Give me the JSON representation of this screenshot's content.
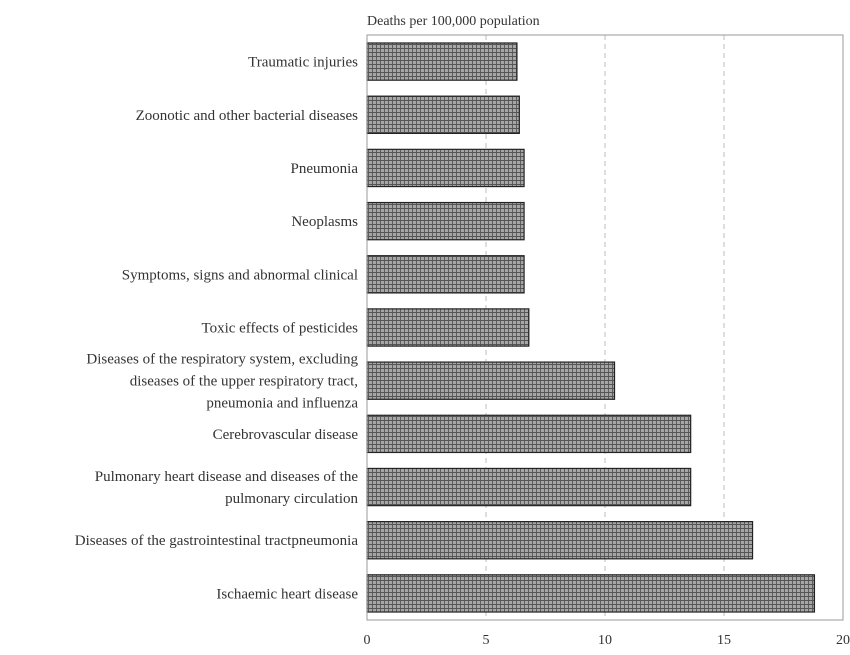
{
  "chart_data": {
    "type": "bar",
    "orientation": "horizontal",
    "title": "Deaths per 100,000 population",
    "xlabel": "",
    "ylabel": "",
    "xlim": [
      0,
      20
    ],
    "x_ticks": [
      "0",
      "5",
      "10",
      "15",
      "20"
    ],
    "grid": true,
    "grid_style": "dashed vertical",
    "legend": "none",
    "bar_color": "#9a9a9a",
    "bar_edge_color": "#222222",
    "categories": [
      [
        "Traumatic injuries"
      ],
      [
        "Zoonotic and other bacterial diseases"
      ],
      [
        "Pneumonia"
      ],
      [
        "Neoplasms"
      ],
      [
        "Symptoms, signs and abnormal clinical"
      ],
      [
        "Toxic effects of pesticides"
      ],
      [
        "Diseases of the respiratory system, excluding",
        "diseases of the upper respiratory  tract,",
        "pneumonia and influenza"
      ],
      [
        "Cerebrovascular disease"
      ],
      [
        "Pulmonary heart disease and diseases of the",
        "pulmonary circulation"
      ],
      [
        "Diseases of the gastrointestinal tractpneumonia"
      ],
      [
        "Ischaemic heart disease"
      ]
    ],
    "values": [
      6.3,
      6.4,
      6.6,
      6.6,
      6.6,
      6.8,
      10.4,
      13.6,
      13.6,
      16.2,
      18.8
    ]
  }
}
